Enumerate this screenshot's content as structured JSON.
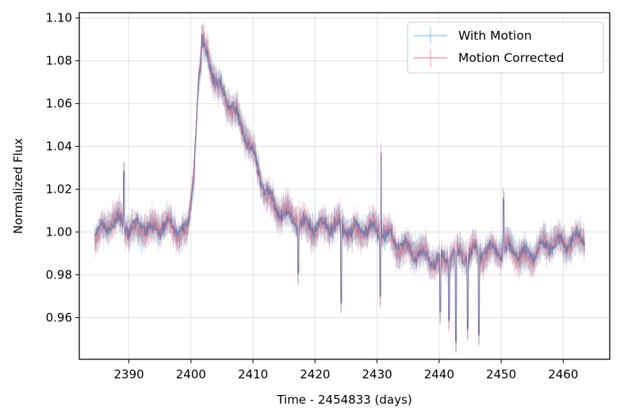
{
  "chart_data": {
    "type": "line",
    "xlabel": "Time - 2454833 (days)",
    "ylabel": "Normalized Flux",
    "xlim": [
      2382.0,
      2467.5
    ],
    "ylim": [
      0.9405,
      1.1025
    ],
    "x_ticks": [
      2390,
      2400,
      2410,
      2420,
      2430,
      2440,
      2450,
      2460
    ],
    "x_tick_labels": [
      "2390",
      "2400",
      "2410",
      "2420",
      "2430",
      "2440",
      "2450",
      "2460"
    ],
    "y_ticks": [
      0.96,
      0.98,
      1.0,
      1.02,
      1.04,
      1.06,
      1.08,
      1.1
    ],
    "y_tick_labels": [
      "0.96",
      "0.98",
      "1.00",
      "1.02",
      "1.04",
      "1.06",
      "1.08",
      "1.10"
    ],
    "grid": true,
    "legend_position": "top-right",
    "colors": {
      "with_motion": "#6ab0d8",
      "motion_corrected": "#e06a80",
      "overlap": "#4a5f9c"
    },
    "series": [
      {
        "name": "With Motion",
        "style": "errorbar",
        "x": [
          2384.5,
          2386,
          2388,
          2390,
          2392,
          2394,
          2396,
          2398,
          2399.5,
          2400.5,
          2401.2,
          2402,
          2403,
          2404,
          2406,
          2408,
          2410,
          2412,
          2414,
          2416,
          2418,
          2420,
          2422,
          2424,
          2426,
          2428,
          2430,
          2432,
          2434,
          2436,
          2438,
          2440,
          2442,
          2444,
          2446,
          2448,
          2450,
          2452,
          2454,
          2456,
          2458,
          2460,
          2462,
          2463.5
        ],
        "y": [
          0.999,
          1.002,
          1.005,
          1.001,
          1.004,
          1.0,
          1.003,
          1.002,
          1.001,
          1.03,
          1.07,
          1.085,
          1.079,
          1.07,
          1.062,
          1.05,
          1.036,
          1.02,
          1.01,
          1.006,
          1.004,
          1.003,
          1.002,
          1.003,
          1.001,
          1.002,
          1.0,
          0.998,
          0.994,
          0.99,
          0.988,
          0.986,
          0.99,
          0.988,
          0.991,
          0.992,
          0.99,
          0.991,
          0.989,
          0.992,
          0.994,
          0.995,
          0.997,
          0.998
        ]
      },
      {
        "name": "Motion Corrected",
        "style": "errorbar",
        "x": [
          2384.5,
          2386,
          2388,
          2390,
          2392,
          2394,
          2396,
          2398,
          2399.5,
          2400.5,
          2401.2,
          2402,
          2403,
          2404,
          2406,
          2408,
          2410,
          2412,
          2414,
          2416,
          2418,
          2420,
          2422,
          2424,
          2426,
          2428,
          2430,
          2432,
          2434,
          2436,
          2438,
          2440,
          2442,
          2444,
          2446,
          2448,
          2450,
          2452,
          2454,
          2456,
          2458,
          2460,
          2462,
          2463.5
        ],
        "y": [
          0.999,
          1.002,
          1.005,
          1.001,
          1.004,
          1.0,
          1.003,
          1.002,
          1.001,
          1.03,
          1.07,
          1.085,
          1.079,
          1.07,
          1.062,
          1.05,
          1.036,
          1.02,
          1.01,
          1.006,
          1.004,
          1.003,
          1.002,
          1.003,
          1.001,
          1.002,
          1.0,
          0.998,
          0.994,
          0.99,
          0.988,
          0.986,
          0.99,
          0.988,
          0.991,
          0.992,
          0.99,
          0.991,
          0.989,
          0.992,
          0.994,
          0.995,
          0.997,
          0.998
        ]
      }
    ],
    "notable_features": {
      "flare_peak": {
        "x": 2401.8,
        "y": 1.092
      },
      "positive_spikes": [
        {
          "x": 2389.2,
          "y": 1.028
        },
        {
          "x": 2430.6,
          "y": 1.037
        },
        {
          "x": 2450.4,
          "y": 1.015
        }
      ],
      "negative_spikes": [
        {
          "x": 2417.3,
          "y": 0.981
        },
        {
          "x": 2424.2,
          "y": 0.967
        },
        {
          "x": 2430.5,
          "y": 0.97
        },
        {
          "x": 2440.2,
          "y": 0.963
        },
        {
          "x": 2441.6,
          "y": 0.959
        },
        {
          "x": 2442.7,
          "y": 0.949
        },
        {
          "x": 2444.6,
          "y": 0.955
        },
        {
          "x": 2446.4,
          "y": 0.952
        }
      ]
    }
  }
}
